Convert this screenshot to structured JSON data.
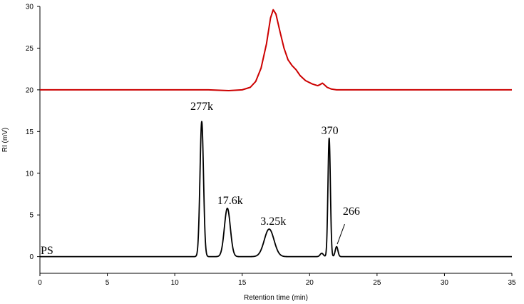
{
  "chart_data": {
    "type": "line",
    "title": "",
    "xlabel": "Retention time (min)",
    "ylabel": "RI (mV)",
    "xlim": [
      0,
      35
    ],
    "ylim": [
      -2,
      30
    ],
    "xticks": [
      0,
      5,
      10,
      15,
      20,
      25,
      30,
      35
    ],
    "yticks": [
      0,
      5,
      10,
      15,
      20,
      25,
      30
    ],
    "grid": false,
    "series": [
      {
        "name": "",
        "color": "#cc0000",
        "points": [
          [
            0,
            20.0
          ],
          [
            12,
            20.0
          ],
          [
            12.5,
            20.0
          ],
          [
            14,
            19.9
          ],
          [
            15,
            20.0
          ],
          [
            15.6,
            20.3
          ],
          [
            16.0,
            21.0
          ],
          [
            16.4,
            22.6
          ],
          [
            16.8,
            25.5
          ],
          [
            17.1,
            28.6
          ],
          [
            17.3,
            29.6
          ],
          [
            17.5,
            29.1
          ],
          [
            17.8,
            27.0
          ],
          [
            18.1,
            25.0
          ],
          [
            18.4,
            23.6
          ],
          [
            18.7,
            22.9
          ],
          [
            19.0,
            22.4
          ],
          [
            19.3,
            21.7
          ],
          [
            19.7,
            21.1
          ],
          [
            20.2,
            20.7
          ],
          [
            20.6,
            20.5
          ],
          [
            20.8,
            20.65
          ],
          [
            20.95,
            20.8
          ],
          [
            21.1,
            20.6
          ],
          [
            21.3,
            20.3
          ],
          [
            21.6,
            20.1
          ],
          [
            22.0,
            20.0
          ],
          [
            35,
            20.0
          ]
        ]
      },
      {
        "name": "PS",
        "color": "#000000",
        "peaks": [
          {
            "x": 12.0,
            "h": 16.2,
            "w": 0.13
          },
          {
            "x": 13.9,
            "h": 5.8,
            "w": 0.22
          },
          {
            "x": 17.0,
            "h": 3.3,
            "w": 0.36
          },
          {
            "x": 20.9,
            "h": 0.4,
            "w": 0.12
          },
          {
            "x": 21.45,
            "h": 14.2,
            "w": 0.09
          },
          {
            "x": 22.0,
            "h": 1.2,
            "w": 0.1
          }
        ],
        "baseline": 0
      }
    ],
    "annotations": [
      {
        "text": "277k",
        "x": 12.0,
        "y": 17.6
      },
      {
        "text": "17.6k",
        "x": 14.1,
        "y": 6.3
      },
      {
        "text": "3.25k",
        "x": 17.3,
        "y": 3.8
      },
      {
        "text": "370",
        "x": 21.5,
        "y": 14.7
      },
      {
        "text": "266",
        "x": 23.1,
        "y": 5.0
      }
    ],
    "series_label": {
      "text": "PS",
      "x": 0.0,
      "y": 0.3
    }
  }
}
